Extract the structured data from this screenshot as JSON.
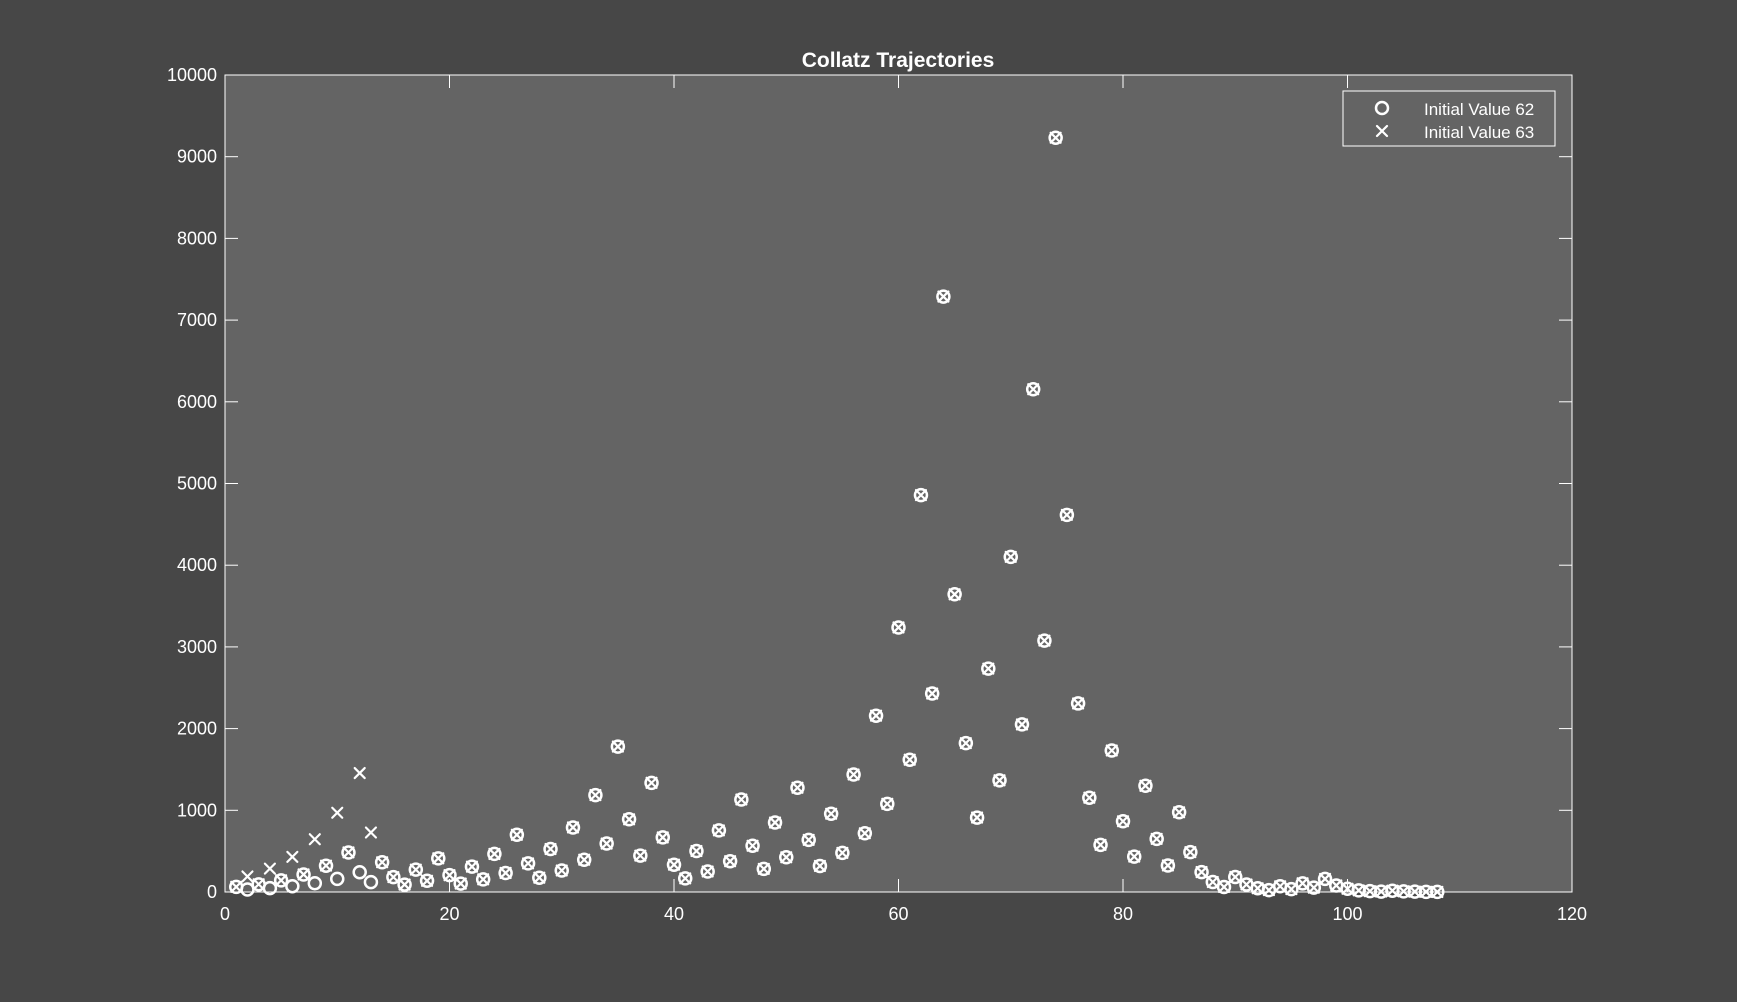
{
  "colors": {
    "figure_background": "#474747",
    "axes_background": "#646464",
    "foreground": "#ffffff"
  },
  "chart_data": {
    "type": "scatter",
    "title": "Collatz Trajectories",
    "xlabel": "",
    "ylabel": "",
    "xlim": [
      0,
      120
    ],
    "ylim": [
      0,
      10000
    ],
    "x_ticks": [
      0,
      20,
      40,
      60,
      80,
      100,
      120
    ],
    "y_ticks": [
      0,
      1000,
      2000,
      3000,
      4000,
      5000,
      6000,
      7000,
      8000,
      9000,
      10000
    ],
    "grid": false,
    "legend_position": "top-right",
    "series": [
      {
        "name": "Initial Value 62",
        "marker": "circle-icon",
        "x": [
          1,
          2,
          3,
          4,
          5,
          6,
          7,
          8,
          9,
          10,
          11,
          12,
          13,
          14,
          15,
          16,
          17,
          18,
          19,
          20,
          21,
          22,
          23,
          24,
          25,
          26,
          27,
          28,
          29,
          30,
          31,
          32,
          33,
          34,
          35,
          36,
          37,
          38,
          39,
          40,
          41,
          42,
          43,
          44,
          45,
          46,
          47,
          48,
          49,
          50,
          51,
          52,
          53,
          54,
          55,
          56,
          57,
          58,
          59,
          60,
          61,
          62,
          63,
          64,
          65,
          66,
          67,
          68,
          69,
          70,
          71,
          72,
          73,
          74,
          75,
          76,
          77,
          78,
          79,
          80,
          81,
          82,
          83,
          84,
          85,
          86,
          87,
          88,
          89,
          90,
          91,
          92,
          93,
          94,
          95,
          96,
          97,
          98,
          99,
          100,
          101,
          102,
          103,
          104,
          105,
          106,
          107,
          108
        ],
        "y": [
          62,
          31,
          94,
          47,
          142,
          71,
          214,
          107,
          322,
          161,
          484,
          242,
          121,
          364,
          182,
          91,
          274,
          137,
          412,
          206,
          103,
          310,
          155,
          466,
          233,
          700,
          350,
          175,
          526,
          263,
          790,
          395,
          1186,
          593,
          1780,
          890,
          445,
          1336,
          668,
          334,
          167,
          502,
          251,
          754,
          377,
          1132,
          566,
          283,
          850,
          425,
          1276,
          638,
          319,
          958,
          479,
          1438,
          719,
          2158,
          1079,
          3238,
          1619,
          4858,
          2429,
          7288,
          3644,
          1822,
          911,
          2734,
          1367,
          4102,
          2051,
          6154,
          3077,
          9232,
          4616,
          2308,
          1154,
          577,
          1732,
          866,
          433,
          1300,
          650,
          325,
          976,
          488,
          244,
          122,
          61,
          184,
          92,
          46,
          23,
          70,
          35,
          106,
          53,
          160,
          80,
          40,
          20,
          10,
          5,
          16,
          8,
          4,
          2,
          1
        ]
      },
      {
        "name": "Initial Value 63",
        "marker": "x-icon",
        "x": [
          1,
          2,
          3,
          4,
          5,
          6,
          7,
          8,
          9,
          10,
          11,
          12,
          13,
          14,
          15,
          16,
          17,
          18,
          19,
          20,
          21,
          22,
          23,
          24,
          25,
          26,
          27,
          28,
          29,
          30,
          31,
          32,
          33,
          34,
          35,
          36,
          37,
          38,
          39,
          40,
          41,
          42,
          43,
          44,
          45,
          46,
          47,
          48,
          49,
          50,
          51,
          52,
          53,
          54,
          55,
          56,
          57,
          58,
          59,
          60,
          61,
          62,
          63,
          64,
          65,
          66,
          67,
          68,
          69,
          70,
          71,
          72,
          73,
          74,
          75,
          76,
          77,
          78,
          79,
          80,
          81,
          82,
          83,
          84,
          85,
          86,
          87,
          88,
          89,
          90,
          91,
          92,
          93,
          94,
          95,
          96,
          97,
          98,
          99,
          100,
          101,
          102,
          103,
          104,
          105,
          106,
          107,
          108
        ],
        "y": [
          63,
          190,
          95,
          286,
          143,
          430,
          215,
          646,
          323,
          970,
          485,
          1456,
          728,
          364,
          182,
          91,
          274,
          137,
          412,
          206,
          103,
          310,
          155,
          466,
          233,
          700,
          350,
          175,
          526,
          263,
          790,
          395,
          1186,
          593,
          1780,
          890,
          445,
          1336,
          668,
          334,
          167,
          502,
          251,
          754,
          377,
          1132,
          566,
          283,
          850,
          425,
          1276,
          638,
          319,
          958,
          479,
          1438,
          719,
          2158,
          1079,
          3238,
          1619,
          4858,
          2429,
          7288,
          3644,
          1822,
          911,
          2734,
          1367,
          4102,
          2051,
          6154,
          3077,
          9232,
          4616,
          2308,
          1154,
          577,
          1732,
          866,
          433,
          1300,
          650,
          325,
          976,
          488,
          244,
          122,
          61,
          184,
          92,
          46,
          23,
          70,
          35,
          106,
          53,
          160,
          80,
          40,
          20,
          10,
          5,
          16,
          8,
          4,
          2,
          1
        ]
      }
    ]
  }
}
